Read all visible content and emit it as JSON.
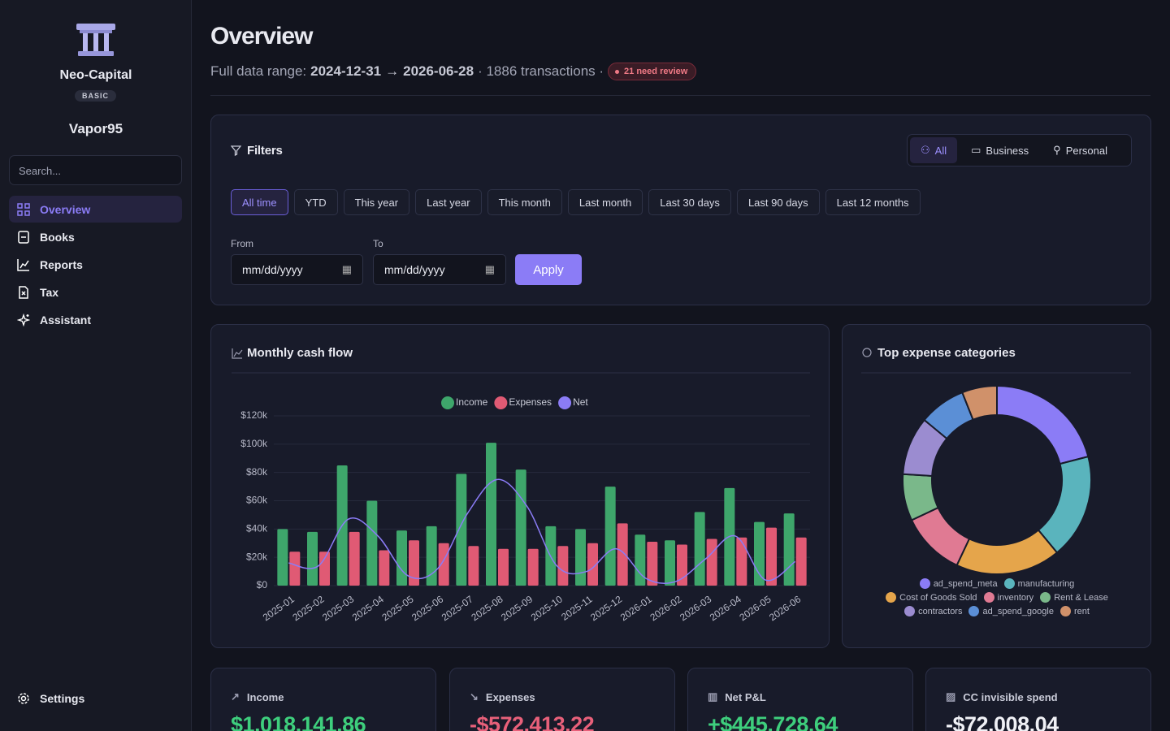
{
  "sidebar": {
    "org_name": "Neo-Capital",
    "plan": "BASIC",
    "user": "Vapor95",
    "search_placeholder": "Search...",
    "nav": [
      "Overview",
      "Books",
      "Reports",
      "Tax",
      "Assistant"
    ],
    "settings": "Settings"
  },
  "header": {
    "title": "Overview",
    "range_prefix": "Full data range:",
    "range_start": "2024-12-31",
    "range_arrow": "→",
    "range_end": "2026-06-28",
    "transactions": "· 1886 transactions ·",
    "review_badge": "21 need review"
  },
  "filters": {
    "title": "Filters",
    "scopes": [
      "All",
      "Business",
      "Personal"
    ],
    "presets": [
      "All time",
      "YTD",
      "This year",
      "Last year",
      "This month",
      "Last month",
      "Last 30 days",
      "Last 90 days",
      "Last 12 months"
    ],
    "from_label": "From",
    "to_label": "To",
    "date_placeholder": "mm/dd/yyyy",
    "apply": "Apply"
  },
  "chart_data": [
    {
      "type": "bar",
      "title": "Monthly cash flow",
      "categories": [
        "2025-01",
        "2025-02",
        "2025-03",
        "2025-04",
        "2025-05",
        "2025-06",
        "2025-07",
        "2025-08",
        "2025-09",
        "2025-10",
        "2025-11",
        "2025-12",
        "2026-01",
        "2026-02",
        "2026-03",
        "2026-04",
        "2026-05",
        "2026-06"
      ],
      "series": [
        {
          "name": "Income",
          "color": "#3ea66b",
          "values": [
            40000,
            38000,
            85000,
            60000,
            39000,
            42000,
            79000,
            101000,
            82000,
            42000,
            40000,
            70000,
            36000,
            32000,
            52000,
            69000,
            45000,
            51000
          ]
        },
        {
          "name": "Expenses",
          "color": "#e05a74",
          "values": [
            24000,
            24000,
            38000,
            25000,
            32000,
            30000,
            28000,
            26000,
            26000,
            28000,
            30000,
            44000,
            31000,
            29000,
            33000,
            34000,
            41000,
            34000
          ]
        },
        {
          "name": "Net",
          "type": "line",
          "color": "#8b7cf6",
          "values": [
            16000,
            14000,
            47000,
            35000,
            7000,
            12000,
            51000,
            75000,
            56000,
            14000,
            10000,
            26000,
            5000,
            3000,
            19000,
            35000,
            4000,
            17000
          ]
        }
      ],
      "ylim": [
        0,
        120000
      ],
      "yticks": [
        {
          "value": 0,
          "label": "$0"
        },
        {
          "value": 20000,
          "label": "$20k"
        },
        {
          "value": 40000,
          "label": "$40k"
        },
        {
          "value": 60000,
          "label": "$60k"
        },
        {
          "value": 80000,
          "label": "$80k"
        },
        {
          "value": 100000,
          "label": "$100k"
        },
        {
          "value": 120000,
          "label": "$120k"
        }
      ],
      "grid": true
    },
    {
      "type": "donut",
      "title": "Top expense categories",
      "categories": [
        "ad_spend_meta",
        "manufacturing",
        "Cost of Goods Sold",
        "inventory",
        "Rent & Lease",
        "contractors",
        "ad_spend_google",
        "rent"
      ],
      "values": [
        21,
        18,
        18,
        11,
        8,
        10,
        8,
        6
      ],
      "colors": [
        "#8b7cf6",
        "#5ab4bd",
        "#e5a54b",
        "#e07a93",
        "#7ab88a",
        "#9b8cd0",
        "#5b8fd6",
        "#d0916a"
      ]
    }
  ],
  "kpis": [
    {
      "label": "Income",
      "value": "$1,018,141.86"
    },
    {
      "label": "Expenses",
      "value": "-$572,413.22"
    },
    {
      "label": "Net P&L",
      "value": "+$445,728.64"
    },
    {
      "label": "CC invisible spend",
      "value": "-$72,008.04"
    }
  ]
}
